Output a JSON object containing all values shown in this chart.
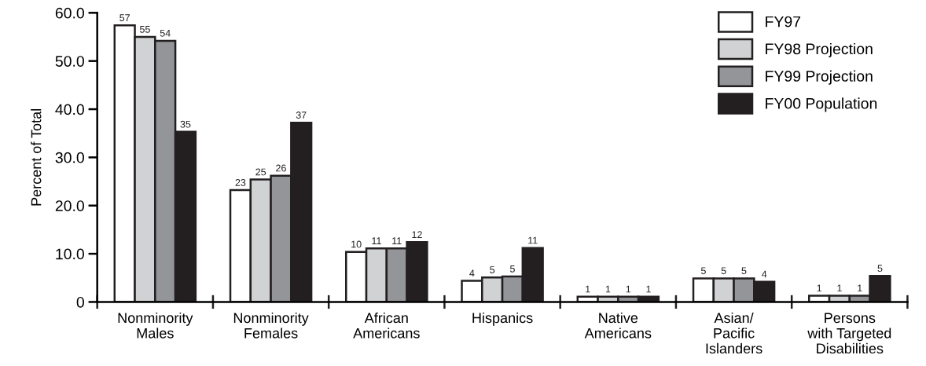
{
  "chart_data": {
    "type": "bar",
    "ylabel": "Percent of Total",
    "categories": [
      "Nonminority\nMales",
      "Nonminority\nFemales",
      "African\nAmericans",
      "Hispanics",
      "Native\nAmericans",
      "Asian/\nPacific\nIslanders",
      "Persons\nwith Targeted\nDisabilities"
    ],
    "series": [
      {
        "name": "FY97",
        "color": "#ffffff",
        "values": [
          57.4,
          23.2,
          10.4,
          4.4,
          1.1,
          4.9,
          1.3
        ],
        "value_labels": [
          "57",
          "23",
          "10",
          "4",
          "1",
          "5",
          "1"
        ]
      },
      {
        "name": "FY98 Projection",
        "color": "#d1d2d4",
        "values": [
          55.0,
          25.4,
          11.1,
          5.1,
          1.1,
          4.9,
          1.3
        ],
        "value_labels": [
          "55",
          "25",
          "11",
          "5",
          "1",
          "5",
          "1"
        ]
      },
      {
        "name": "FY99 Projection",
        "color": "#939598",
        "values": [
          54.2,
          26.2,
          11.1,
          5.3,
          1.1,
          4.9,
          1.3
        ],
        "value_labels": [
          "54",
          "26",
          "11",
          "5",
          "1",
          "5",
          "1"
        ]
      },
      {
        "name": "FY00 Population",
        "color": "#231f20",
        "values": [
          35.3,
          37.2,
          12.4,
          11.2,
          1.1,
          4.2,
          5.4
        ],
        "value_labels": [
          "35",
          "37",
          "12",
          "11",
          "1",
          "4",
          "5"
        ]
      }
    ],
    "ylim": [
      0,
      60
    ],
    "yticks": [
      {
        "value": 0,
        "label": "0"
      },
      {
        "value": 10,
        "label": "10.0"
      },
      {
        "value": 20,
        "label": "20.0"
      },
      {
        "value": 30,
        "label": "30.0"
      },
      {
        "value": 40,
        "label": "40.0"
      },
      {
        "value": 50,
        "label": "50.0"
      },
      {
        "value": 60,
        "label": "60.0"
      }
    ],
    "grid": false,
    "legend": "top right"
  }
}
